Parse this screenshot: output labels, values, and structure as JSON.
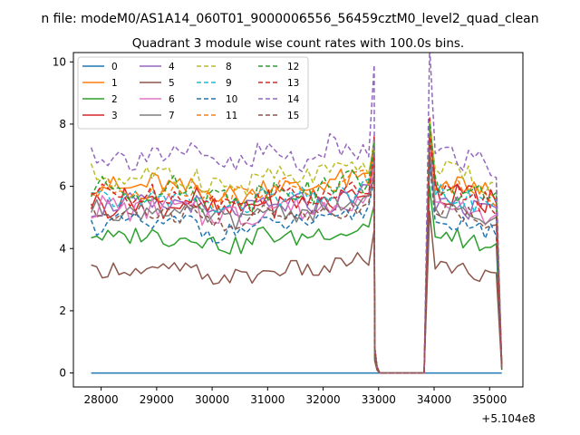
{
  "chart_data": {
    "type": "line",
    "suptitle": "n file: modeM0/AS1A14_060T01_9000006556_56459cztM0_level2_quad_clean",
    "title": "Quadrant 3 module wise count rates with 100.0s bins.",
    "xlabel": "",
    "ylabel": "",
    "xlim": [
      27500,
      35600
    ],
    "ylim": [
      -0.45,
      10.3
    ],
    "x_offset_text": "+5.104e8",
    "x_ticks": [
      28000,
      29000,
      30000,
      31000,
      32000,
      33000,
      34000,
      35000
    ],
    "x_tick_labels": [
      "28000",
      "29000",
      "30000",
      "31000",
      "32000",
      "33000",
      "34000",
      "35000"
    ],
    "y_ticks": [
      0,
      2,
      4,
      6,
      8,
      10
    ],
    "y_tick_labels": [
      "0",
      "2",
      "4",
      "6",
      "8",
      "10"
    ],
    "legend_position": "upper left",
    "segments": [
      {
        "start": 27820,
        "end": 32870,
        "step": 100
      },
      {
        "drop_x": [
          32930,
          32970
        ],
        "gap_x": [
          33020,
          33820
        ]
      },
      {
        "start": 33920,
        "end": 35120,
        "step": 100
      },
      {
        "tail_x": 35220
      }
    ],
    "series": [
      {
        "name": "0",
        "color": "#1f77b4",
        "dash": "solid",
        "mean1": 0.0,
        "mean2": 0.0,
        "spread": 0.0,
        "peak": 0.0,
        "tail": 0.0
      },
      {
        "name": "1",
        "color": "#ff7f0e",
        "dash": "solid",
        "mean1": 6.0,
        "mean2": 6.3,
        "spread": 0.45,
        "peak": 7.3,
        "tail": 0.2
      },
      {
        "name": "2",
        "color": "#2ca02c",
        "dash": "solid",
        "mean1": 4.4,
        "mean2": 4.6,
        "spread": 0.35,
        "peak": 5.4,
        "tail": 0.1
      },
      {
        "name": "3",
        "color": "#d62728",
        "dash": "solid",
        "mean1": 5.5,
        "mean2": 6.0,
        "spread": 0.5,
        "peak": 7.6,
        "tail": 0.2
      },
      {
        "name": "4",
        "color": "#9467bd",
        "dash": "solid",
        "mean1": 5.4,
        "mean2": 5.6,
        "spread": 0.4,
        "peak": 6.8,
        "tail": 0.2
      },
      {
        "name": "5",
        "color": "#8c564b",
        "dash": "solid",
        "mean1": 3.3,
        "mean2": 3.6,
        "spread": 0.3,
        "peak": 4.6,
        "tail": 0.1
      },
      {
        "name": "6",
        "color": "#e377c2",
        "dash": "solid",
        "mean1": 5.3,
        "mean2": 5.5,
        "spread": 0.45,
        "peak": 6.6,
        "tail": 0.2
      },
      {
        "name": "7",
        "color": "#7f7f7f",
        "dash": "solid",
        "mean1": 5.2,
        "mean2": 5.4,
        "spread": 0.35,
        "peak": 6.3,
        "tail": 0.2
      },
      {
        "name": "8",
        "color": "#bcbd22",
        "dash": "dashed",
        "mean1": 6.3,
        "mean2": 6.6,
        "spread": 0.45,
        "peak": 7.5,
        "tail": 0.2
      },
      {
        "name": "9",
        "color": "#17becf",
        "dash": "dashed",
        "mean1": 5.6,
        "mean2": 5.9,
        "spread": 0.4,
        "peak": 7.0,
        "tail": 0.2
      },
      {
        "name": "10",
        "color": "#1f77b4",
        "dash": "dashed",
        "mean1": 4.8,
        "mean2": 5.1,
        "spread": 0.35,
        "peak": 6.2,
        "tail": 0.2
      },
      {
        "name": "11",
        "color": "#ff7f0e",
        "dash": "dashed",
        "mean1": 5.9,
        "mean2": 6.2,
        "spread": 0.4,
        "peak": 7.1,
        "tail": 0.2
      },
      {
        "name": "12",
        "color": "#2ca02c",
        "dash": "dashed",
        "mean1": 5.9,
        "mean2": 6.1,
        "spread": 0.45,
        "peak": 7.4,
        "tail": 0.2
      },
      {
        "name": "13",
        "color": "#d62728",
        "dash": "dashed",
        "mean1": 5.7,
        "mean2": 6.0,
        "spread": 0.4,
        "peak": 7.0,
        "tail": 0.2
      },
      {
        "name": "14",
        "color": "#9467bd",
        "dash": "dashed",
        "mean1": 7.0,
        "mean2": 7.3,
        "spread": 0.55,
        "peak": 9.9,
        "tail": 0.2
      },
      {
        "name": "15",
        "color": "#8c564b",
        "dash": "dashed",
        "mean1": 5.1,
        "mean2": 5.4,
        "spread": 0.35,
        "peak": 6.4,
        "tail": 0.2
      }
    ]
  }
}
